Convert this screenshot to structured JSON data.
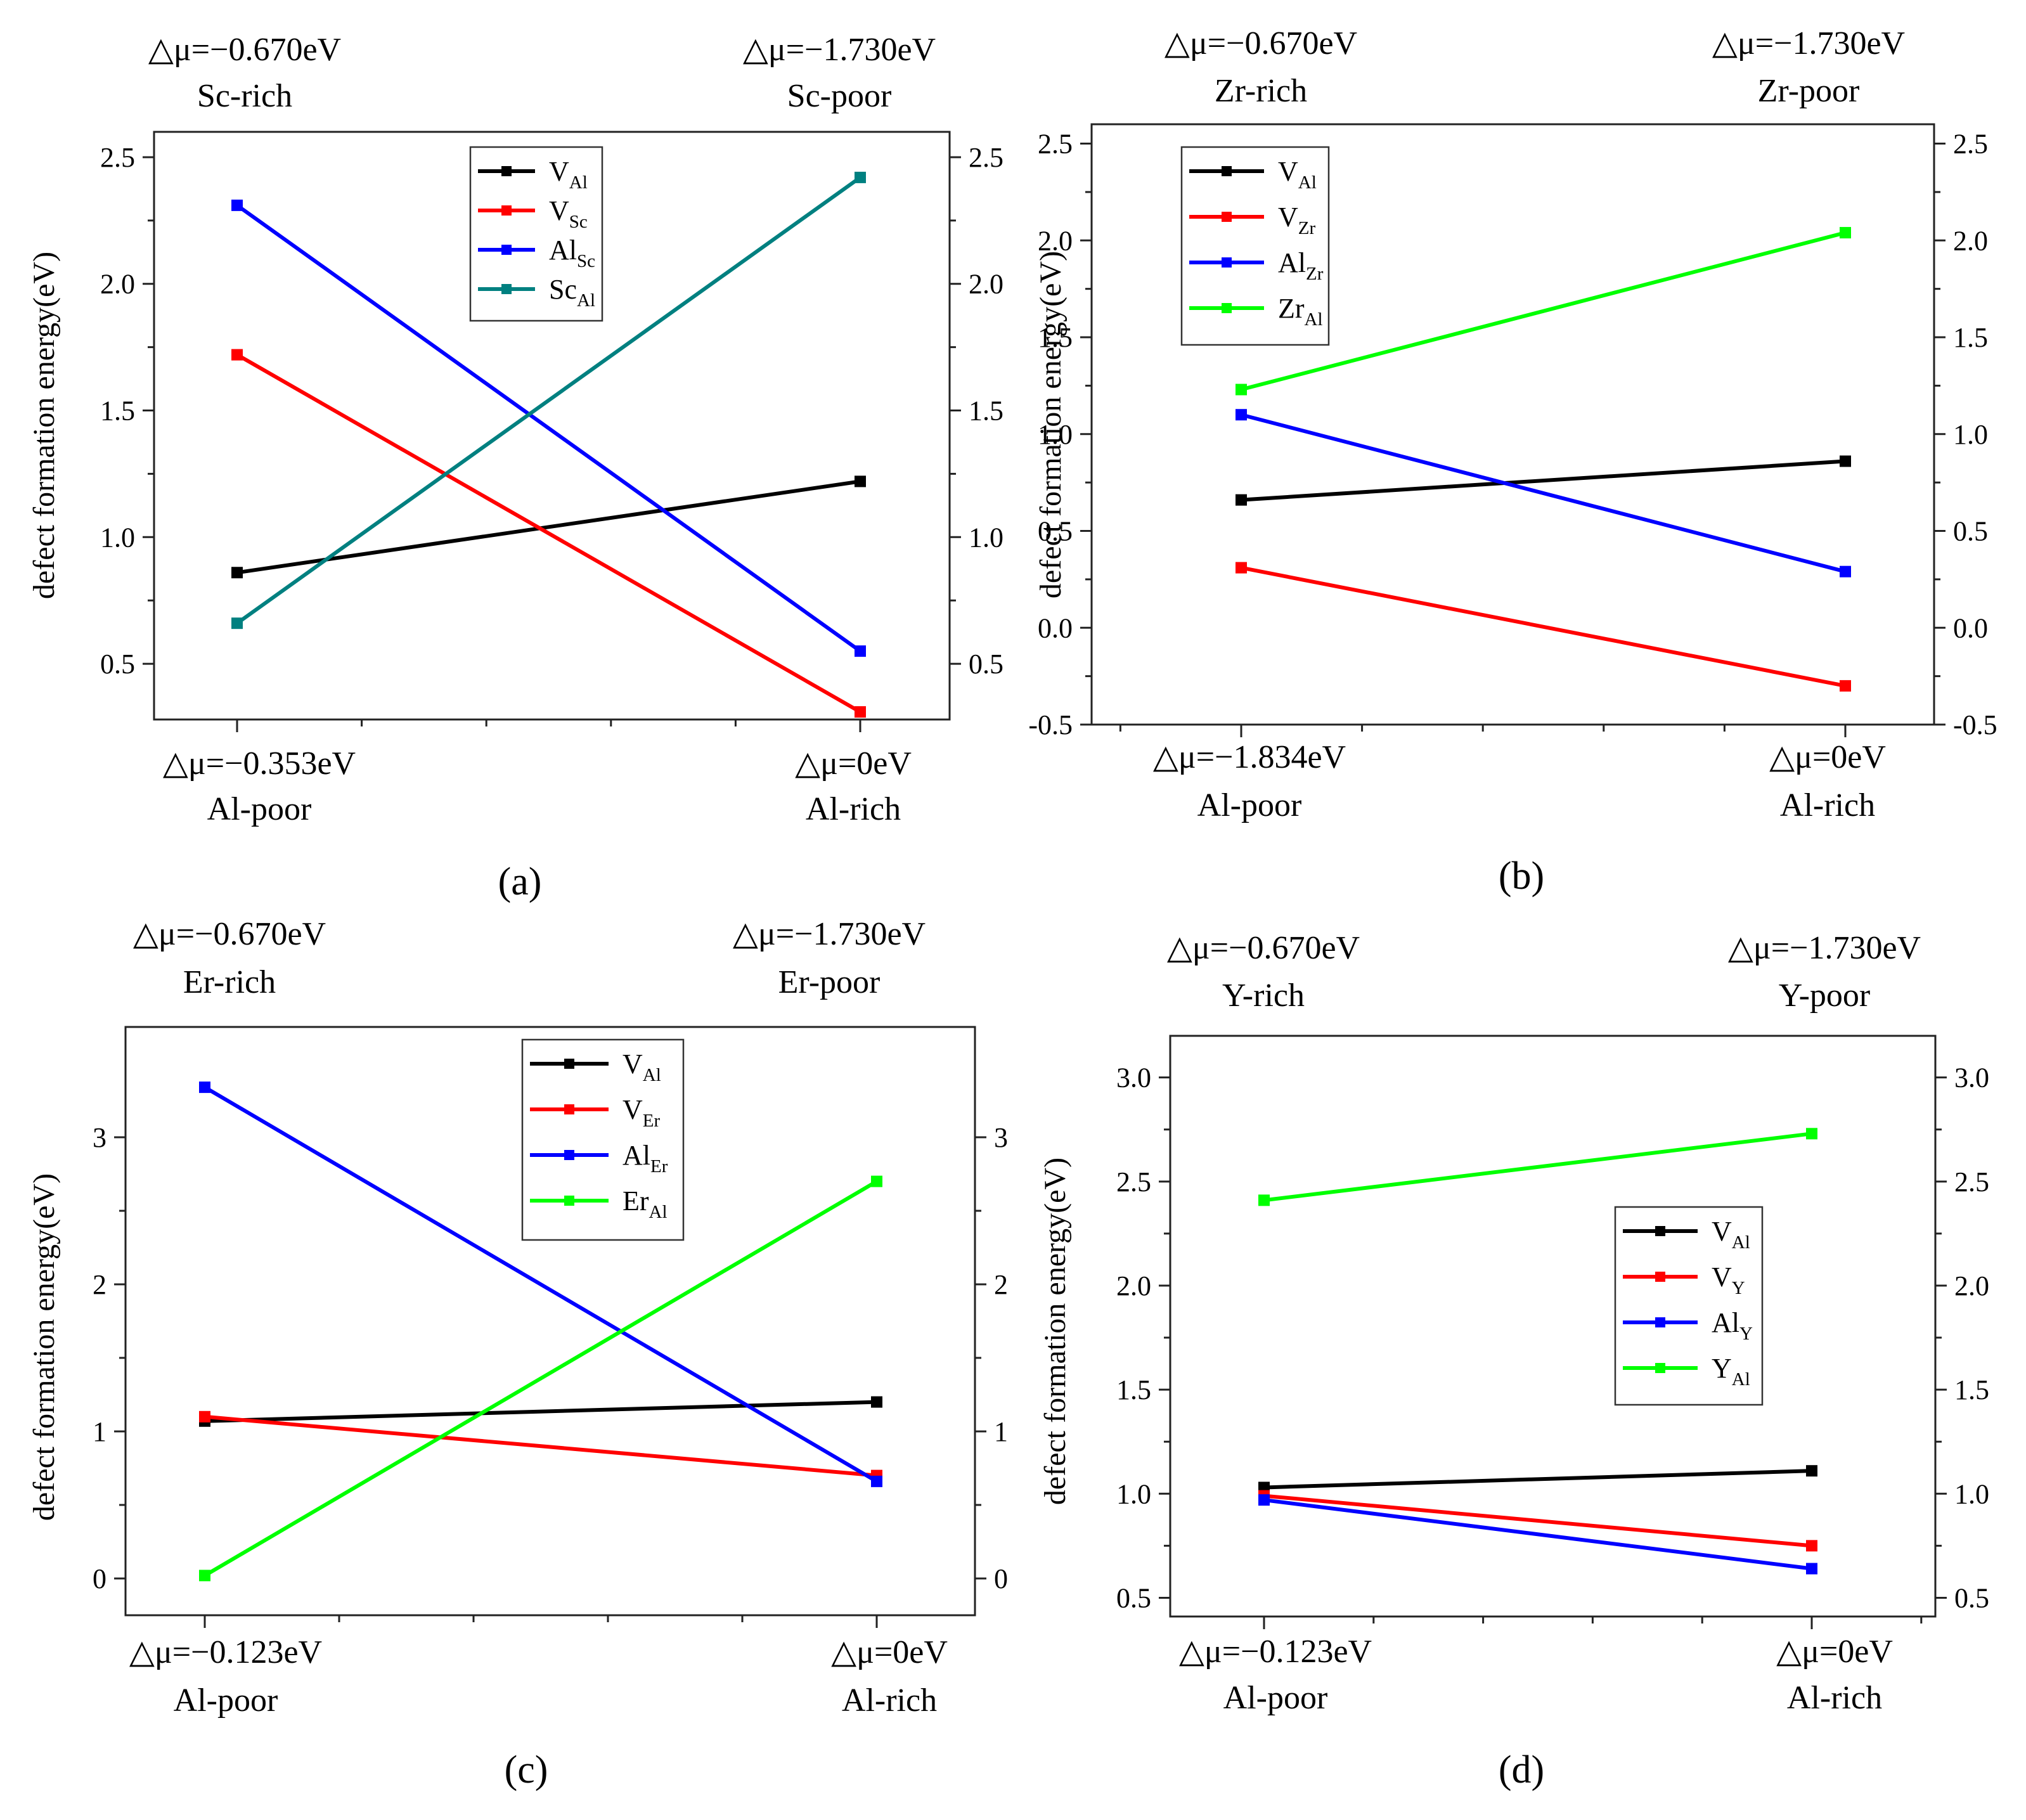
{
  "figure_description_labels": [
    "(a)",
    "(b)",
    "(c)",
    "(d)"
  ],
  "chart_data": [
    {
      "type": "line",
      "panel_label": "(a)",
      "ylabel": "defect formation energy(eV)",
      "ylim": [
        0.28,
        2.6
      ],
      "yticks": [
        0.5,
        1.0,
        1.5,
        2.0,
        2.5
      ],
      "ytick_labels": [
        "0.5",
        "1.0",
        "1.5",
        "2.0",
        "2.5"
      ],
      "x": [
        "Al-poor",
        "Al-rich"
      ],
      "bottom_labels": [
        {
          "delta": "△μ=−0.353eV",
          "condition": "Al-poor"
        },
        {
          "delta": "△μ=0eV",
          "condition": "Al-rich"
        }
      ],
      "top_labels": [
        {
          "delta": "△μ=−0.670eV",
          "condition": "Sc-rich"
        },
        {
          "delta": "△μ=−1.730eV",
          "condition": "Sc-poor"
        }
      ],
      "legend_position": "top-center",
      "series": [
        {
          "name_base": "V",
          "name_sub": "Al",
          "color": "#000000",
          "values": [
            0.86,
            1.22
          ]
        },
        {
          "name_base": "V",
          "name_sub": "Sc",
          "color": "#ff0000",
          "values": [
            1.72,
            0.31
          ]
        },
        {
          "name_base": "Al",
          "name_sub": "Sc",
          "color": "#0000ff",
          "values": [
            2.31,
            0.55
          ]
        },
        {
          "name_base": "Sc",
          "name_sub": "Al",
          "color": "#008080",
          "values": [
            0.66,
            2.42
          ]
        }
      ]
    },
    {
      "type": "line",
      "panel_label": "(b)",
      "ylabel": "defect formation energy(eV)",
      "ylim": [
        -0.5,
        2.6
      ],
      "yticks": [
        -0.5,
        0.0,
        0.5,
        1.0,
        1.5,
        2.0,
        2.5
      ],
      "ytick_labels": [
        "-0.5",
        "0.0",
        "0.5",
        "1.0",
        "1.5",
        "2.0",
        "2.5"
      ],
      "x": [
        "Al-poor",
        "Al-rich"
      ],
      "bottom_labels": [
        {
          "delta": "△μ=−1.834eV",
          "condition": "Al-poor"
        },
        {
          "delta": "△μ=0eV",
          "condition": "Al-rich"
        }
      ],
      "top_labels": [
        {
          "delta": "△μ=−0.670eV",
          "condition": "Zr-rich"
        },
        {
          "delta": "△μ=−1.730eV",
          "condition": "Zr-poor"
        }
      ],
      "legend_position": "top-left",
      "series": [
        {
          "name_base": "V",
          "name_sub": "Al",
          "color": "#000000",
          "values": [
            0.66,
            0.86
          ]
        },
        {
          "name_base": "V",
          "name_sub": "Zr",
          "color": "#ff0000",
          "values": [
            0.31,
            -0.3
          ]
        },
        {
          "name_base": "Al",
          "name_sub": "Zr",
          "color": "#0000ff",
          "values": [
            1.1,
            0.29
          ]
        },
        {
          "name_base": "Zr",
          "name_sub": "Al",
          "color": "#00ff00",
          "values": [
            1.23,
            2.04
          ]
        }
      ]
    },
    {
      "type": "line",
      "panel_label": "(c)",
      "ylabel": "defect formation energy(eV)",
      "ylim": [
        -0.25,
        3.75
      ],
      "yticks": [
        0,
        1,
        2,
        3
      ],
      "ytick_labels": [
        "0",
        "1",
        "2",
        "3"
      ],
      "x": [
        "Al-poor",
        "Al-rich"
      ],
      "bottom_labels": [
        {
          "delta": "△μ=−0.123eV",
          "condition": "Al-poor"
        },
        {
          "delta": "△μ=0eV",
          "condition": "Al-rich"
        }
      ],
      "top_labels": [
        {
          "delta": "△μ=−0.670eV",
          "condition": "Er-rich"
        },
        {
          "delta": "△μ=−1.730eV",
          "condition": "Er-poor"
        }
      ],
      "legend_position": "top-center",
      "series": [
        {
          "name_base": "V",
          "name_sub": "Al",
          "color": "#000000",
          "values": [
            1.07,
            1.2
          ]
        },
        {
          "name_base": "V",
          "name_sub": "Er",
          "color": "#ff0000",
          "values": [
            1.1,
            0.7
          ]
        },
        {
          "name_base": "Al",
          "name_sub": "Er",
          "color": "#0000ff",
          "values": [
            3.34,
            0.66
          ]
        },
        {
          "name_base": "Er",
          "name_sub": "Al",
          "color": "#00ff00",
          "values": [
            0.02,
            2.7
          ]
        }
      ]
    },
    {
      "type": "line",
      "panel_label": "(d)",
      "ylabel": "defect formation energy(eV)",
      "ylim": [
        0.41,
        3.2
      ],
      "yticks": [
        0.5,
        1.0,
        1.5,
        2.0,
        2.5,
        3.0
      ],
      "ytick_labels": [
        "0.5",
        "1.0",
        "1.5",
        "2.0",
        "2.5",
        "3.0"
      ],
      "x": [
        "Al-poor",
        "Al-rich"
      ],
      "bottom_labels": [
        {
          "delta": "△μ=−0.123eV",
          "condition": "Al-poor"
        },
        {
          "delta": "△μ=0eV",
          "condition": "Al-rich"
        }
      ],
      "top_labels": [
        {
          "delta": "△μ=−0.670eV",
          "condition": "Y-rich"
        },
        {
          "delta": "△μ=−1.730eV",
          "condition": "Y-poor"
        }
      ],
      "legend_position": "center-right",
      "series": [
        {
          "name_base": "V",
          "name_sub": "Al",
          "color": "#000000",
          "values": [
            1.03,
            1.11
          ]
        },
        {
          "name_base": "V",
          "name_sub": "Y",
          "color": "#ff0000",
          "values": [
            0.99,
            0.75
          ]
        },
        {
          "name_base": "Al",
          "name_sub": "Y",
          "color": "#0000ff",
          "values": [
            0.97,
            0.64
          ]
        },
        {
          "name_base": "Y",
          "name_sub": "Al",
          "color": "#00ff00",
          "values": [
            2.41,
            2.73
          ]
        }
      ]
    }
  ]
}
